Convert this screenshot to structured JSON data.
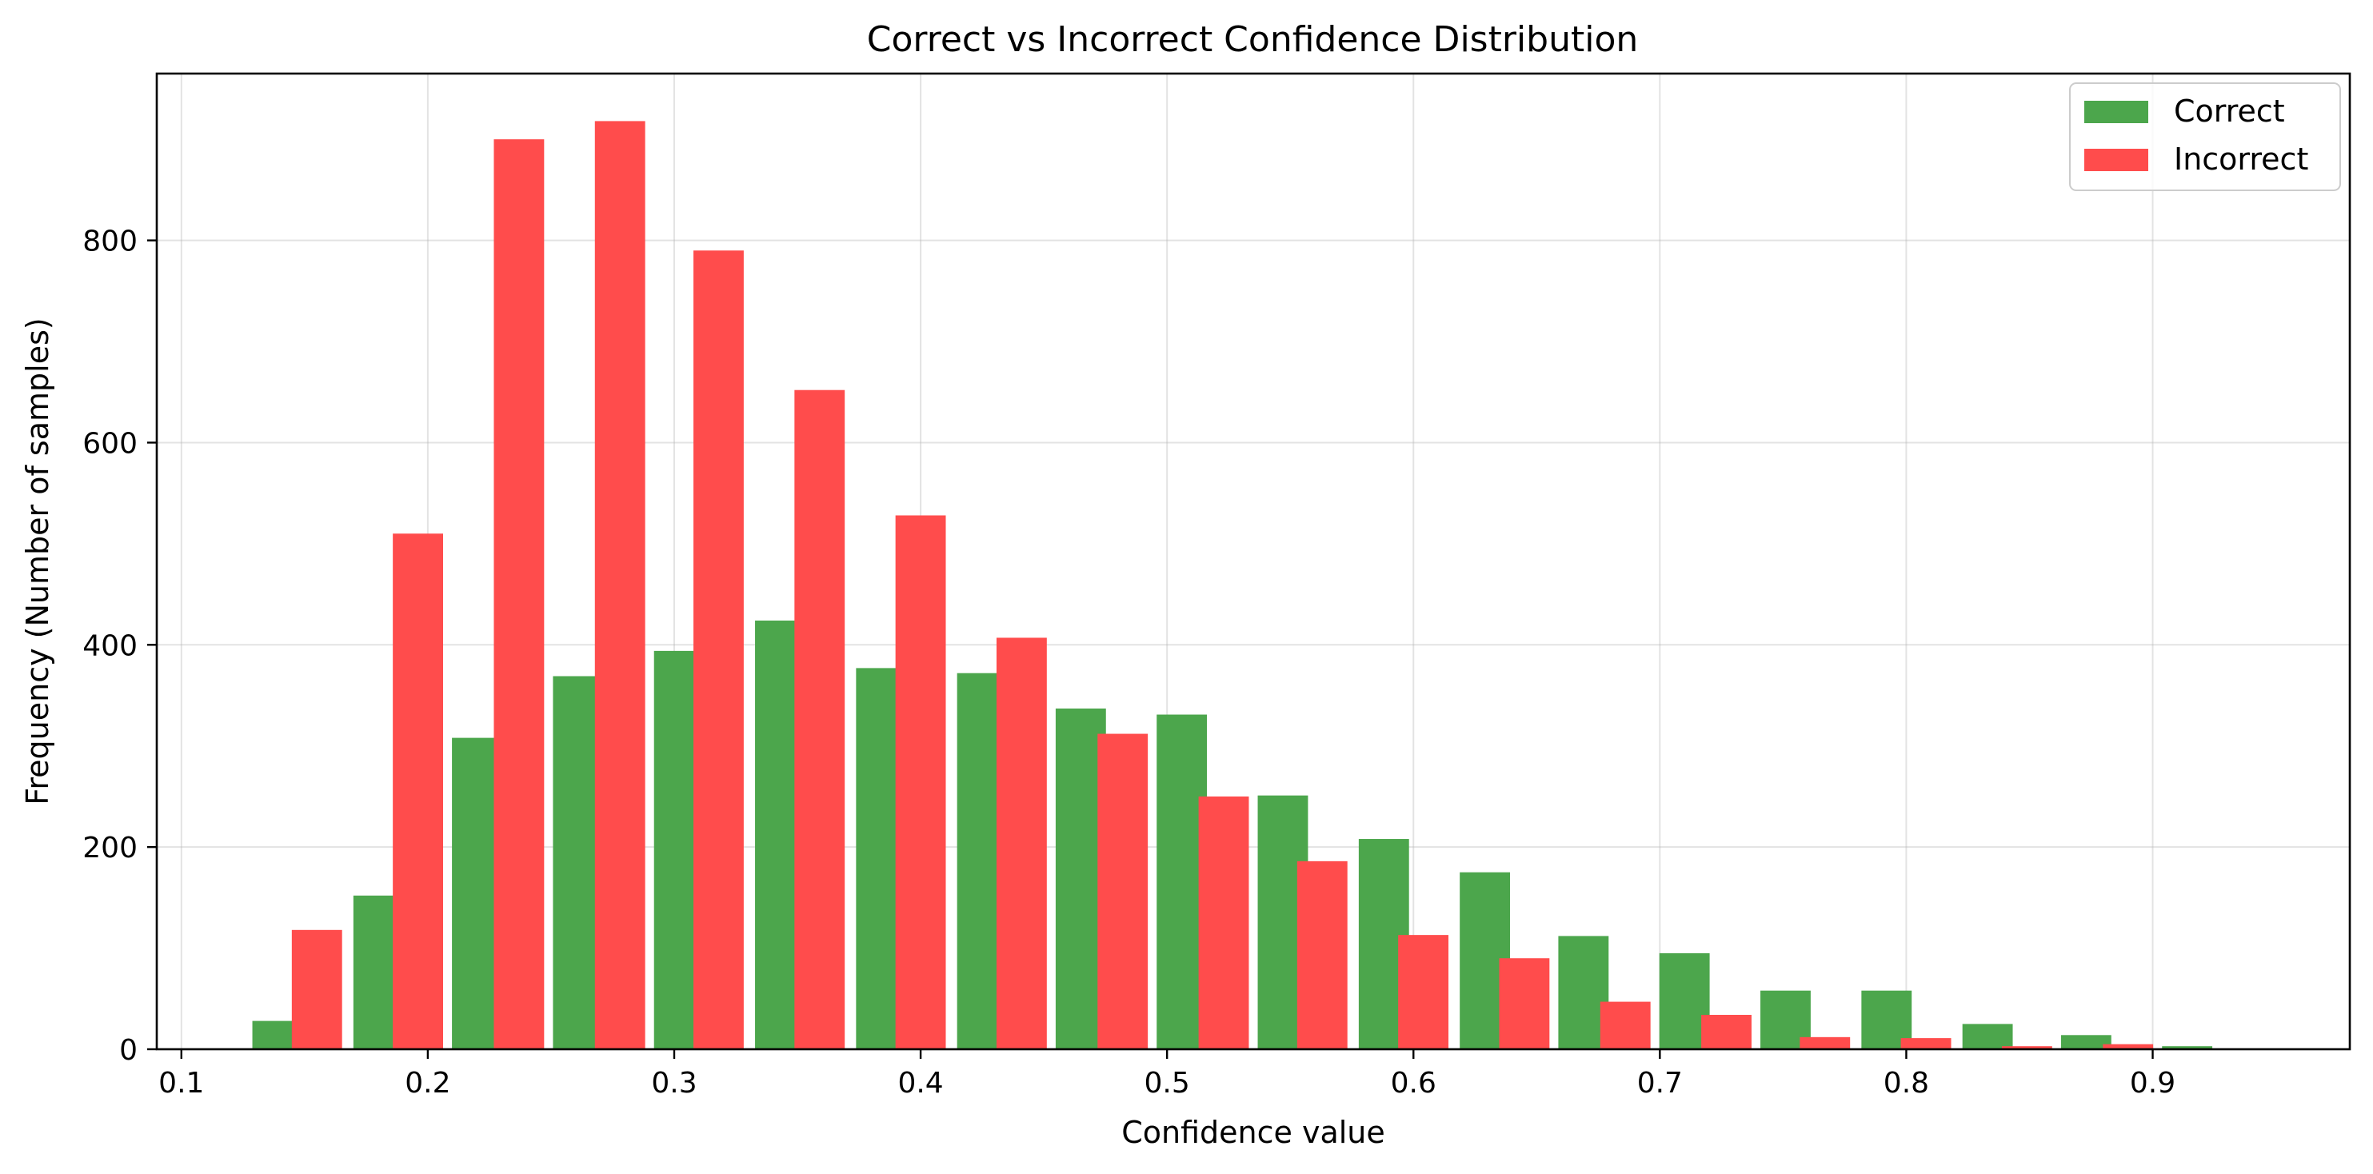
{
  "chart_data": {
    "type": "bar",
    "title": "Correct vs Incorrect Confidence Distribution",
    "xlabel": "Confidence value",
    "ylabel": "Frequency (Number of samples)",
    "xlim": [
      0.09,
      0.98
    ],
    "ylim": [
      0,
      965
    ],
    "xticks": [
      0.1,
      0.2,
      0.3,
      0.4,
      0.5,
      0.6,
      0.7,
      0.8,
      0.9
    ],
    "xtick_labels": [
      "0.1",
      "0.2",
      "0.3",
      "0.4",
      "0.5",
      "0.6",
      "0.7",
      "0.8",
      "0.9"
    ],
    "yticks": [
      0,
      200,
      400,
      600,
      800
    ],
    "ytick_labels": [
      "0",
      "200",
      "400",
      "600",
      "800"
    ],
    "bin_width": 0.0408,
    "grid": true,
    "legend_position": "top-right",
    "series": [
      {
        "name": "Correct",
        "color": "#4ca64c",
        "x": [
          0.139,
          0.18,
          0.22,
          0.261,
          0.302,
          0.343,
          0.384,
          0.425,
          0.465,
          0.506,
          0.547,
          0.588,
          0.629,
          0.669,
          0.71,
          0.751,
          0.792,
          0.833,
          0.873,
          0.914
        ],
        "values": [
          28,
          152,
          308,
          369,
          394,
          424,
          377,
          372,
          337,
          331,
          251,
          208,
          175,
          112,
          95,
          58,
          58,
          25,
          14,
          3
        ]
      },
      {
        "name": "Incorrect",
        "color": "#ff4c4c",
        "x": [
          0.155,
          0.196,
          0.237,
          0.278,
          0.318,
          0.359,
          0.4,
          0.441,
          0.482,
          0.523,
          0.563,
          0.604,
          0.645,
          0.686,
          0.727,
          0.767,
          0.808,
          0.849,
          0.89
        ],
        "values": [
          118,
          510,
          900,
          918,
          790,
          652,
          528,
          407,
          312,
          250,
          186,
          113,
          90,
          47,
          34,
          12,
          11,
          3,
          5
        ]
      }
    ]
  }
}
